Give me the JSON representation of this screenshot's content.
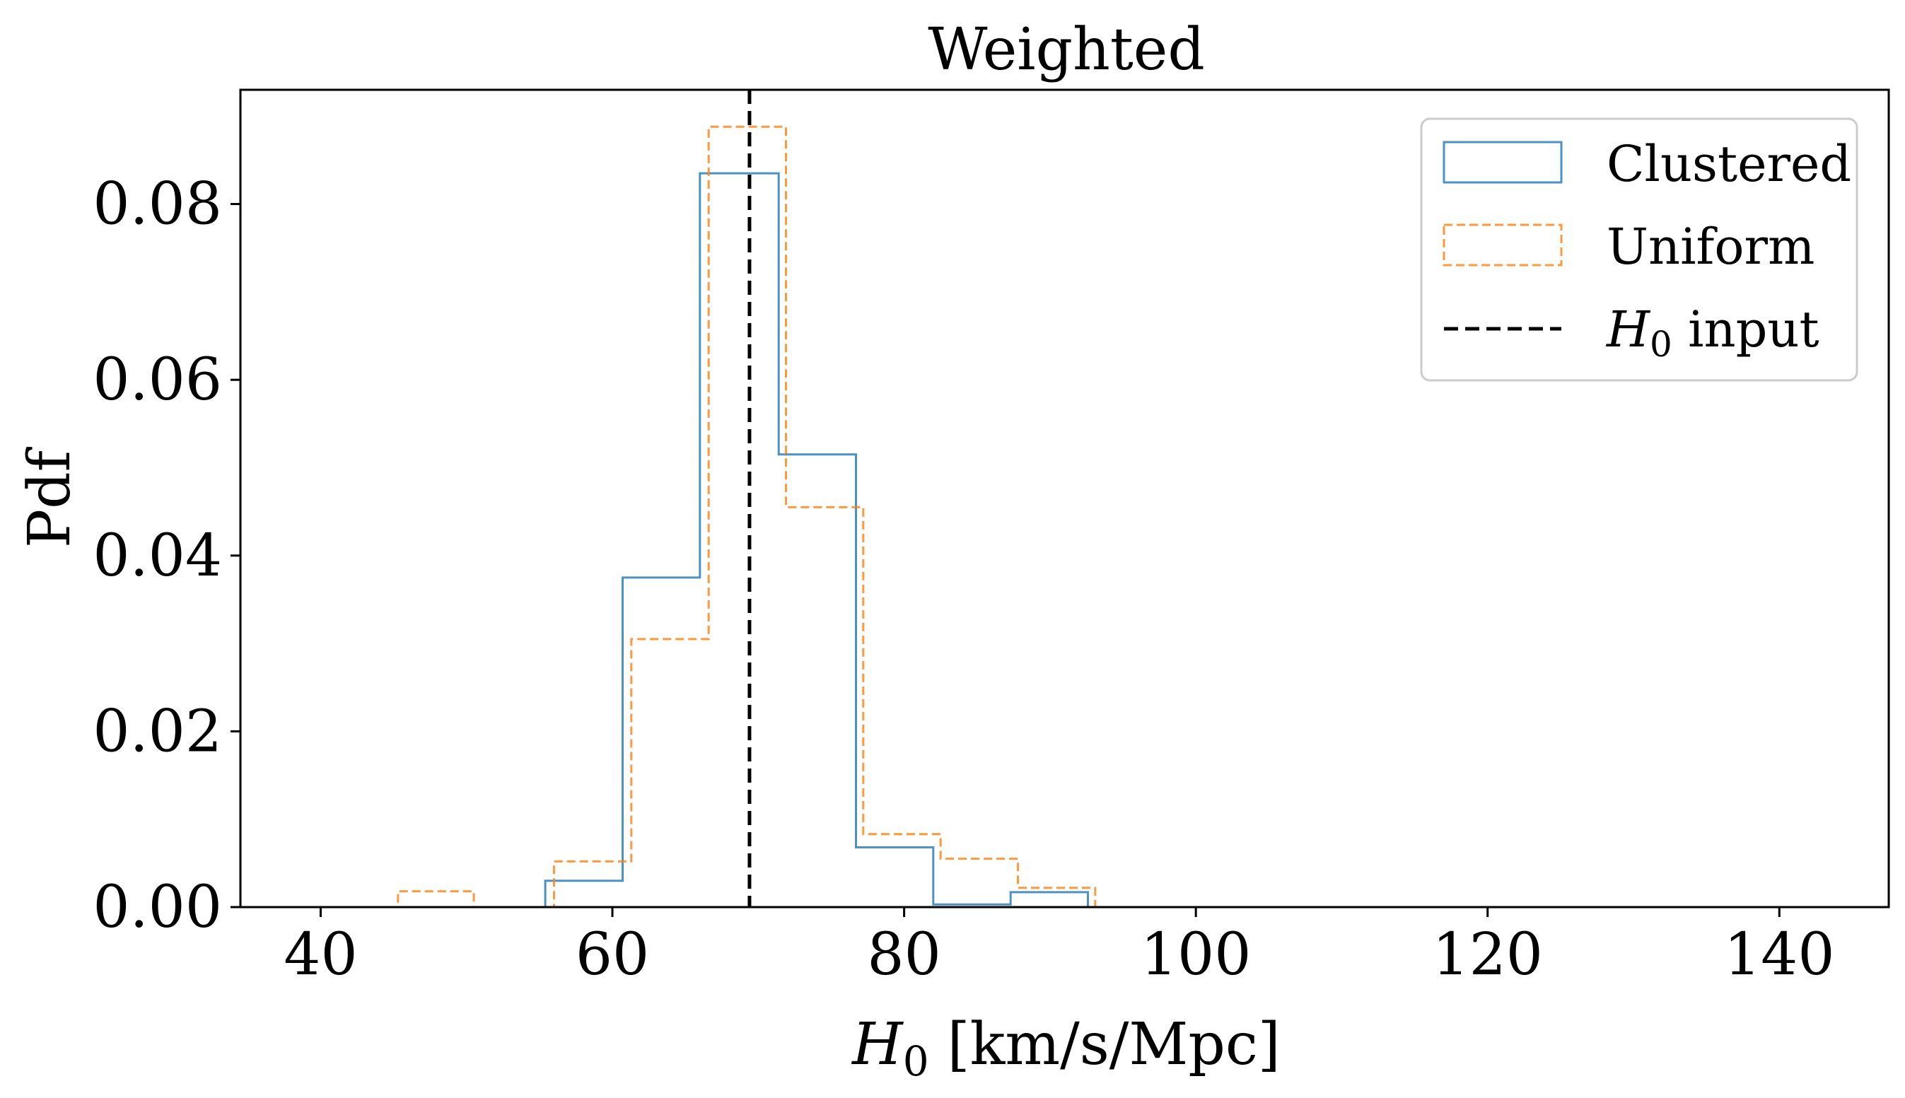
{
  "chart_data": {
    "type": "histogram",
    "title": "Weighted",
    "xlabel": "H0 [km/s/Mpc]",
    "xlabel_parts": {
      "symbol": "H",
      "subscript": "0",
      "rest": " [km/s/Mpc]"
    },
    "ylabel": "Pdf",
    "xlim": [
      34.5,
      147.5
    ],
    "ylim": [
      0.0,
      0.093
    ],
    "xticks": [
      40,
      60,
      80,
      100,
      120,
      140
    ],
    "xtick_labels": [
      "40",
      "60",
      "80",
      "100",
      "120",
      "140"
    ],
    "yticks": [
      0.0,
      0.02,
      0.04,
      0.06,
      0.08
    ],
    "ytick_labels": [
      "0.00",
      "0.02",
      "0.04",
      "0.06",
      "0.08"
    ],
    "series": [
      {
        "name": "Clustered",
        "style": "solid",
        "color": "#1f77b4",
        "bin_edges": [
          39.5,
          44.8,
          50.1,
          55.4,
          60.7,
          66.0,
          71.4,
          76.7,
          82.0,
          87.3,
          92.6,
          97.9,
          142.0
        ],
        "values": [
          0.0,
          0.0,
          0.0,
          0.003,
          0.0375,
          0.0835,
          0.0515,
          0.0068,
          0.0003,
          0.0017,
          0.0,
          0.0
        ]
      },
      {
        "name": "Uniform",
        "style": "dashed",
        "color": "#ff7f0e",
        "bin_edges": [
          39.5,
          45.3,
          50.5,
          56.0,
          61.3,
          66.6,
          71.9,
          77.2,
          82.5,
          87.8,
          93.1,
          98.4,
          142.0
        ],
        "values": [
          0.0,
          0.0018,
          0.0,
          0.0052,
          0.0305,
          0.0888,
          0.0455,
          0.0083,
          0.0055,
          0.0022,
          0.0,
          0.0
        ]
      }
    ],
    "reference_line": {
      "name": "H0 input",
      "x": 69.4,
      "style": "dashed",
      "color": "#000000"
    },
    "legend": {
      "position": "top-right",
      "entries": [
        {
          "label": "Clustered",
          "kind": "patch",
          "style": "solid",
          "color": "#1f77b4"
        },
        {
          "label": "Uniform",
          "kind": "patch",
          "style": "dashed",
          "color": "#ff7f0e"
        },
        {
          "label": "H0 input",
          "symbol": "H",
          "subscript": "0",
          "rest": " input",
          "kind": "line",
          "style": "dashed",
          "color": "#000000"
        }
      ]
    }
  }
}
